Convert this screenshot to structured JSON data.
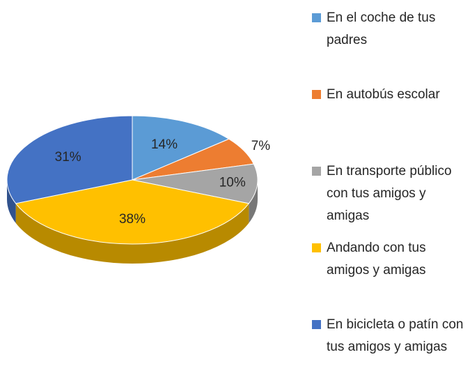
{
  "chart_data": {
    "type": "pie",
    "categories": [
      "En el coche de tus padres",
      "En autobús escolar",
      "En transporte público con tus amigos y amigas",
      "Andando con tus amigos y amigas",
      "En bicicleta o patín con tus amigos y amigas"
    ],
    "values": [
      14,
      7,
      10,
      38,
      31
    ],
    "value_labels": [
      "14%",
      "7%",
      "10%",
      "38%",
      "31%"
    ],
    "colors": [
      "#5b9bd5",
      "#ed7d31",
      "#a5a5a5",
      "#ffc000",
      "#4472c4"
    ],
    "legend": "right"
  }
}
